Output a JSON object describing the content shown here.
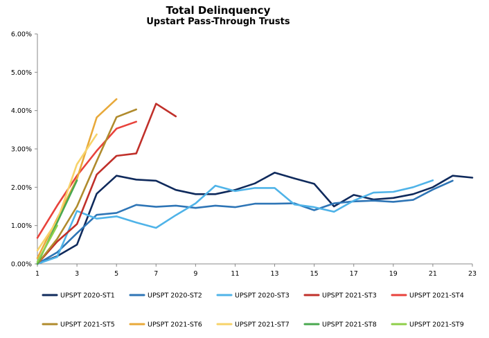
{
  "chart_data": {
    "type": "line",
    "title": "Total Delinquency",
    "subtitle": "Upstart Pass-Through Trusts",
    "xlabel": "",
    "ylabel": "",
    "xlim": [
      1,
      23
    ],
    "ylim": [
      0,
      6
    ],
    "x_ticks": [
      "1",
      "3",
      "5",
      "7",
      "9",
      "11",
      "13",
      "15",
      "17",
      "19",
      "21",
      "23"
    ],
    "y_ticks": [
      "0.00%",
      "1.00%",
      "2.00%",
      "3.00%",
      "4.00%",
      "5.00%",
      "6.00%"
    ],
    "grid": false,
    "legend_position": "bottom",
    "series": [
      {
        "name": "UPSPT 2020-ST1",
        "color": "#0f2a5c",
        "points": [
          [
            1,
            0.0
          ],
          [
            2,
            0.2
          ],
          [
            3,
            0.5
          ],
          [
            4,
            1.83
          ],
          [
            5,
            2.3
          ],
          [
            6,
            2.2
          ],
          [
            7,
            2.17
          ],
          [
            8,
            1.93
          ],
          [
            9,
            1.82
          ],
          [
            10,
            1.82
          ],
          [
            11,
            1.93
          ],
          [
            12,
            2.1
          ],
          [
            13,
            2.38
          ],
          [
            14,
            2.23
          ],
          [
            15,
            2.09
          ],
          [
            16,
            1.5
          ],
          [
            17,
            1.8
          ],
          [
            18,
            1.68
          ],
          [
            19,
            1.72
          ],
          [
            20,
            1.82
          ],
          [
            21,
            2.0
          ],
          [
            22,
            2.3
          ],
          [
            23,
            2.25
          ]
        ]
      },
      {
        "name": "UPSPT 2020-ST2",
        "color": "#2e75b6",
        "points": [
          [
            1,
            0.0
          ],
          [
            2,
            0.3
          ],
          [
            3,
            0.8
          ],
          [
            4,
            1.28
          ],
          [
            5,
            1.33
          ],
          [
            6,
            1.54
          ],
          [
            7,
            1.49
          ],
          [
            8,
            1.52
          ],
          [
            9,
            1.46
          ],
          [
            10,
            1.52
          ],
          [
            11,
            1.48
          ],
          [
            12,
            1.57
          ],
          [
            13,
            1.57
          ],
          [
            14,
            1.58
          ],
          [
            15,
            1.4
          ],
          [
            16,
            1.58
          ],
          [
            17,
            1.63
          ],
          [
            18,
            1.65
          ],
          [
            19,
            1.62
          ],
          [
            20,
            1.67
          ],
          [
            21,
            1.94
          ],
          [
            22,
            2.17
          ]
        ]
      },
      {
        "name": "UPSPT 2020-ST3",
        "color": "#4fb3e8",
        "points": [
          [
            1,
            0.0
          ],
          [
            2,
            0.18
          ],
          [
            3,
            1.38
          ],
          [
            4,
            1.18
          ],
          [
            5,
            1.24
          ],
          [
            6,
            1.08
          ],
          [
            7,
            0.94
          ],
          [
            8,
            1.27
          ],
          [
            9,
            1.58
          ],
          [
            10,
            2.04
          ],
          [
            11,
            1.9
          ],
          [
            12,
            1.98
          ],
          [
            13,
            1.98
          ],
          [
            14,
            1.55
          ],
          [
            15,
            1.48
          ],
          [
            16,
            1.36
          ],
          [
            17,
            1.65
          ],
          [
            18,
            1.86
          ],
          [
            19,
            1.88
          ],
          [
            20,
            2.0
          ],
          [
            21,
            2.18
          ]
        ]
      },
      {
        "name": "UPSPT 2021-ST3",
        "color": "#c0302a",
        "points": [
          [
            1,
            0.0
          ],
          [
            2,
            0.58
          ],
          [
            3,
            1.04
          ],
          [
            4,
            2.33
          ],
          [
            5,
            2.82
          ],
          [
            6,
            2.88
          ],
          [
            7,
            4.18
          ],
          [
            8,
            3.85
          ]
        ]
      },
      {
        "name": "UPSPT 2021-ST4",
        "color": "#e8423b",
        "points": [
          [
            1,
            0.68
          ],
          [
            2,
            1.52
          ],
          [
            3,
            2.3
          ],
          [
            4,
            2.95
          ],
          [
            5,
            3.53
          ],
          [
            6,
            3.71
          ]
        ]
      },
      {
        "name": "UPSPT 2021-ST5",
        "color": "#b08b2d",
        "points": [
          [
            1,
            0.0
          ],
          [
            2,
            0.65
          ],
          [
            3,
            1.5
          ],
          [
            4,
            2.68
          ],
          [
            5,
            3.83
          ],
          [
            6,
            4.03
          ]
        ]
      },
      {
        "name": "UPSPT 2021-ST6",
        "color": "#e8a93a",
        "points": [
          [
            1,
            0.15
          ],
          [
            2,
            1.18
          ],
          [
            3,
            2.22
          ],
          [
            4,
            3.82
          ],
          [
            5,
            4.3
          ]
        ]
      },
      {
        "name": "UPSPT 2021-ST7",
        "color": "#f7d36a",
        "points": [
          [
            1,
            0.35
          ],
          [
            2,
            1.12
          ],
          [
            3,
            2.6
          ],
          [
            4,
            3.38
          ]
        ]
      },
      {
        "name": "UPSPT 2021-ST8",
        "color": "#4aa84f",
        "points": [
          [
            1,
            0.0
          ],
          [
            2,
            1.08
          ],
          [
            3,
            2.18
          ]
        ]
      },
      {
        "name": "UPSPT 2021-ST9",
        "color": "#8fcf4a",
        "points": [
          [
            1,
            0.05
          ],
          [
            2,
            1.0
          ]
        ]
      }
    ]
  }
}
